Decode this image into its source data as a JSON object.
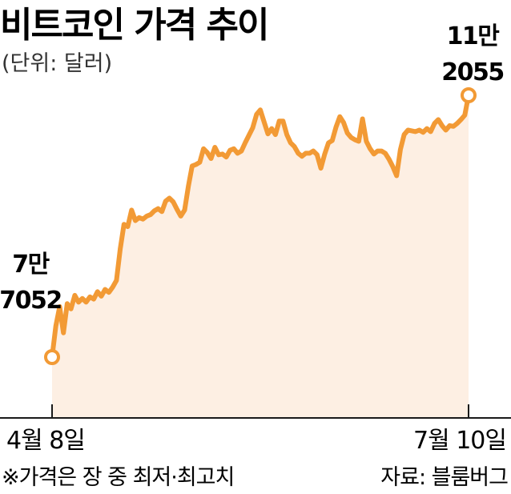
{
  "header": {
    "title": "비트코인 가격 추이",
    "unit": "(단위: 달러)"
  },
  "labels": {
    "start_line1": "7만",
    "start_line2": "7052",
    "end_line1": "11만",
    "end_line2": "2055"
  },
  "footer": {
    "note": "※가격은 장 중 최저·최고치",
    "source": "자료: 블룸버그"
  },
  "colors": {
    "line": "#f29a35",
    "area": "#fdefe3"
  },
  "chart_data": {
    "type": "area",
    "title": "비트코인 가격 추이",
    "unit": "(단위: 달러)",
    "x_start": "4월 8일",
    "x_end": "7월 10일",
    "ylim": [
      60000,
      115000
    ],
    "start_value": 77052,
    "end_value": 112055,
    "values": [
      77052,
      81200,
      83800,
      80300,
      84200,
      83500,
      85300,
      84400,
      84900,
      84400,
      85100,
      84800,
      85800,
      85200,
      86100,
      85700,
      86400,
      87300,
      91500,
      94800,
      94500,
      96700,
      95300,
      95700,
      95500,
      95900,
      96100,
      96600,
      96900,
      96500,
      97900,
      98300,
      97800,
      96800,
      95900,
      96700,
      99900,
      102600,
      102800,
      103100,
      104900,
      104400,
      103600,
      105100,
      104100,
      104200,
      103800,
      104700,
      104900,
      104300,
      104600,
      105700,
      106700,
      107700,
      109500,
      110100,
      108500,
      106900,
      107600,
      106800,
      108600,
      108600,
      106800,
      105700,
      105200,
      104300,
      103900,
      104300,
      104300,
      104600,
      104100,
      102300,
      104200,
      105700,
      106000,
      107800,
      109200,
      108400,
      107000,
      106400,
      106100,
      105900,
      108900,
      105900,
      104900,
      104200,
      104600,
      104600,
      104300,
      103500,
      102500,
      101300,
      104800,
      106800,
      107400,
      107300,
      107200,
      107400,
      107100,
      107600,
      107200,
      108300,
      108800,
      108000,
      107400,
      108000,
      107900,
      108300,
      108800,
      109400,
      112055
    ]
  }
}
